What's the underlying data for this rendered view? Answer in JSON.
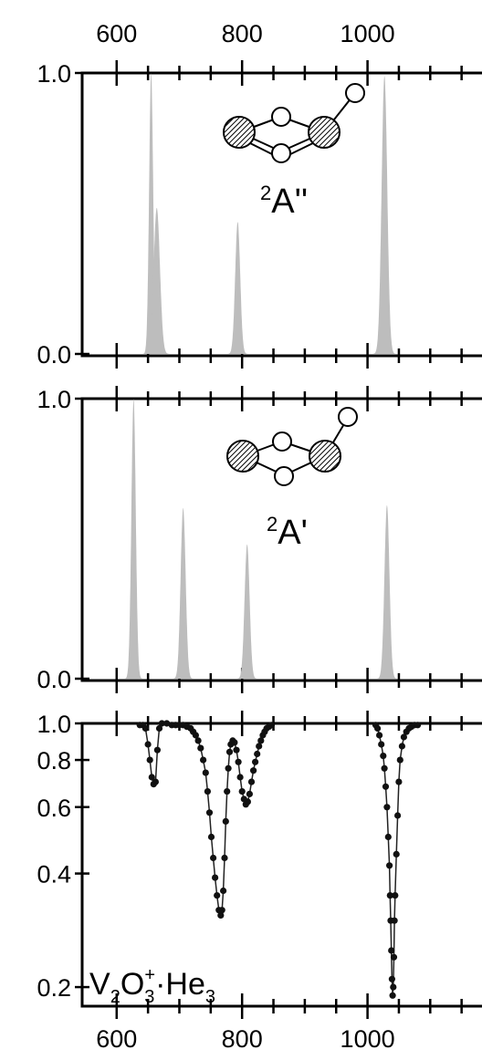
{
  "chart_data": [
    {
      "type": "area",
      "xlim": [
        545,
        1200
      ],
      "ylim": [
        0,
        1.0
      ],
      "x_ticks": [
        600,
        800,
        1000
      ],
      "y_ticks": [
        "0.0",
        "1.0"
      ],
      "label": "2A''",
      "label_sup": "2",
      "label_main": "A''",
      "series": [
        {
          "peaks": [
            {
              "center": 655,
              "height": 1.0,
              "sigma": 3.2
            },
            {
              "center": 664,
              "height": 0.52,
              "sigma": 5
            },
            {
              "center": 793,
              "height": 0.47,
              "sigma": 4
            },
            {
              "center": 1027,
              "height": 0.99,
              "sigma": 4.5
            }
          ]
        }
      ]
    },
    {
      "type": "area",
      "xlim": [
        545,
        1200
      ],
      "ylim": [
        0,
        1.0
      ],
      "x_ticks": [
        600,
        800,
        1000
      ],
      "y_ticks": [
        "0.0",
        "1.0"
      ],
      "label": "2A'",
      "label_sup": "2",
      "label_main": "A'",
      "series": [
        {
          "peaks": [
            {
              "center": 627,
              "height": 1.0,
              "sigma": 3.5
            },
            {
              "center": 706,
              "height": 0.61,
              "sigma": 4
            },
            {
              "center": 808,
              "height": 0.48,
              "sigma": 4
            },
            {
              "center": 1031,
              "height": 0.62,
              "sigma": 4
            }
          ]
        }
      ]
    },
    {
      "type": "scatter",
      "xlim": [
        545,
        1200
      ],
      "ylim": [
        0.18,
        1.0
      ],
      "y_scale": "log",
      "x_ticks": [
        600,
        800,
        1000
      ],
      "y_ticks": [
        "0.2",
        "0.4",
        "0.6",
        "0.8",
        "1.0"
      ],
      "label_parts": {
        "v": "V",
        "v_sub": "2",
        "o": "O",
        "o_sub": "3",
        "o_sup": "+",
        "dot": "·",
        "he": "He",
        "he_sub": "3"
      },
      "series": [
        {
          "points": [
            [
              637,
              0.99
            ],
            [
              642,
              0.99
            ],
            [
              646,
              0.97
            ],
            [
              650,
              0.88
            ],
            [
              653,
              0.8
            ],
            [
              656,
              0.72
            ],
            [
              659,
              0.69
            ],
            [
              662,
              0.7
            ],
            [
              665,
              0.85
            ],
            [
              668,
              0.97
            ],
            [
              672,
              1.0
            ],
            [
              680,
              1.0
            ],
            [
              688,
              0.99
            ],
            [
              694,
              0.99
            ],
            [
              700,
              0.99
            ],
            [
              706,
              0.99
            ],
            [
              712,
              0.98
            ],
            [
              718,
              0.97
            ],
            [
              722,
              0.95
            ],
            [
              726,
              0.93
            ],
            [
              730,
              0.9
            ],
            [
              734,
              0.86
            ],
            [
              738,
              0.8
            ],
            [
              742,
              0.74
            ],
            [
              745,
              0.66
            ],
            [
              748,
              0.58
            ],
            [
              751,
              0.5
            ],
            [
              754,
              0.44
            ],
            [
              757,
              0.39
            ],
            [
              760,
              0.35
            ],
            [
              763,
              0.32
            ],
            [
              766,
              0.31
            ],
            [
              768,
              0.32
            ],
            [
              770,
              0.36
            ],
            [
              772,
              0.44
            ],
            [
              774,
              0.55
            ],
            [
              776,
              0.66
            ],
            [
              778,
              0.76
            ],
            [
              780,
              0.84
            ],
            [
              782,
              0.88
            ],
            [
              785,
              0.9
            ],
            [
              788,
              0.89
            ],
            [
              791,
              0.85
            ],
            [
              794,
              0.79
            ],
            [
              797,
              0.72
            ],
            [
              800,
              0.66
            ],
            [
              803,
              0.63
            ],
            [
              806,
              0.61
            ],
            [
              809,
              0.62
            ],
            [
              812,
              0.65
            ],
            [
              815,
              0.7
            ],
            [
              818,
              0.75
            ],
            [
              821,
              0.79
            ],
            [
              824,
              0.83
            ],
            [
              827,
              0.87
            ],
            [
              830,
              0.9
            ],
            [
              833,
              0.93
            ],
            [
              836,
              0.95
            ],
            [
              839,
              0.97
            ],
            [
              843,
              0.98
            ],
            [
              847,
              0.99
            ],
            [
              1013,
              0.99
            ],
            [
              1016,
              0.97
            ],
            [
              1019,
              0.93
            ],
            [
              1022,
              0.88
            ],
            [
              1025,
              0.82
            ],
            [
              1027,
              0.76
            ],
            [
              1029,
              0.68
            ],
            [
              1031,
              0.6
            ],
            [
              1033,
              0.5
            ],
            [
              1035,
              0.42
            ],
            [
              1036,
              0.35
            ],
            [
              1037,
              0.3
            ],
            [
              1038,
              0.25
            ],
            [
              1039,
              0.21
            ],
            [
              1040,
              0.19
            ],
            [
              1041,
              0.2
            ],
            [
              1042,
              0.24
            ],
            [
              1043,
              0.3
            ],
            [
              1044,
              0.35
            ],
            [
              1046,
              0.45
            ],
            [
              1048,
              0.57
            ],
            [
              1050,
              0.7
            ],
            [
              1052,
              0.8
            ],
            [
              1055,
              0.87
            ],
            [
              1058,
              0.92
            ],
            [
              1062,
              0.95
            ],
            [
              1066,
              0.97
            ],
            [
              1070,
              0.98
            ],
            [
              1075,
              0.99
            ],
            [
              1080,
              0.99
            ]
          ]
        }
      ]
    }
  ]
}
